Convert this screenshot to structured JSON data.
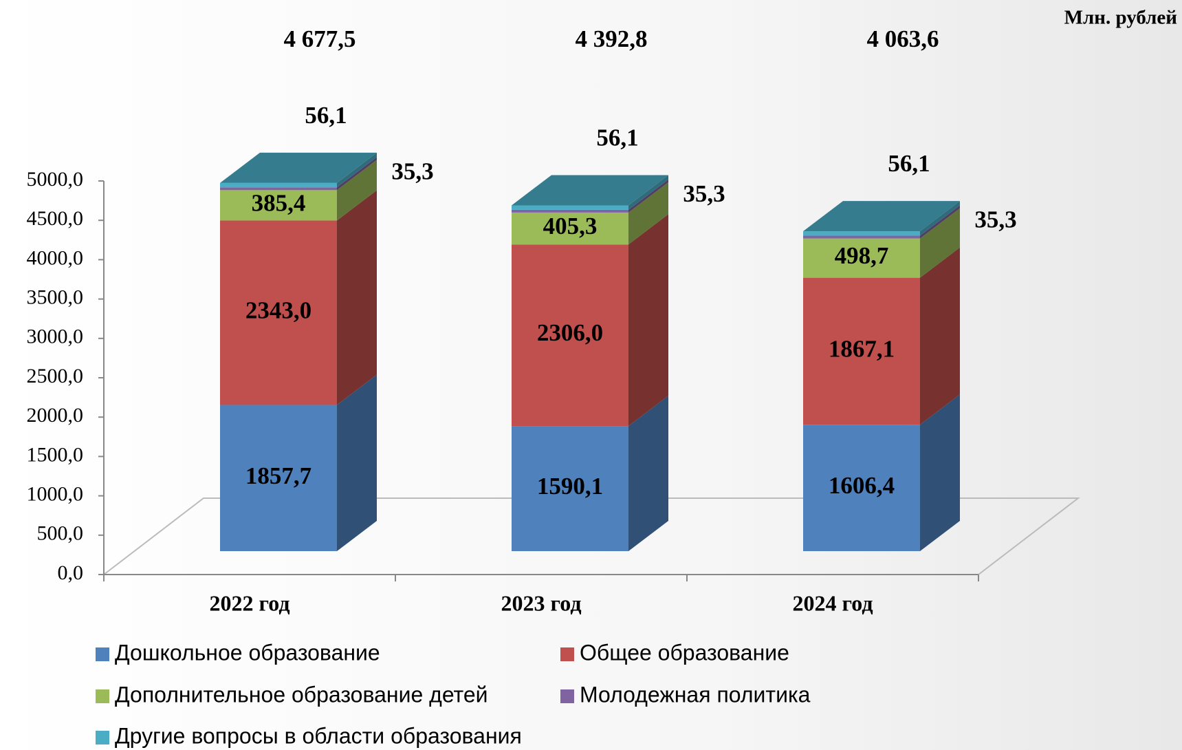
{
  "chart_data": {
    "type": "bar3d_stacked",
    "unit_label": "Млн. рублей",
    "categories": [
      "2022 год",
      "2023 год",
      "2024 год"
    ],
    "totals": [
      4677.5,
      4392.8,
      4063.6
    ],
    "total_labels": [
      "4 677,5",
      "4 392,8",
      "4 063,6"
    ],
    "series": [
      {
        "name": "Дошкольное образование",
        "color": "#4f81bd",
        "values": [
          1857.7,
          1590.1,
          1606.4
        ],
        "value_labels": [
          "1857,7",
          "1590,1",
          "1606,4"
        ]
      },
      {
        "name": "Общее образование",
        "color": "#c0504d",
        "values": [
          2343.0,
          2306.0,
          1867.1
        ],
        "value_labels": [
          "2343,0",
          "2306,0",
          "1867,1"
        ]
      },
      {
        "name": "Дополнительное образование детей",
        "color": "#9bbb59",
        "values": [
          385.4,
          405.3,
          498.7
        ],
        "value_labels": [
          "385,4",
          "405,3",
          "498,7"
        ]
      },
      {
        "name": "Молодежная политика",
        "color": "#8064a2",
        "values": [
          35.3,
          35.3,
          35.3
        ],
        "value_labels": [
          "35,3",
          "35,3",
          "35,3"
        ]
      },
      {
        "name": "Другие вопросы в области образования",
        "color": "#4bacc6",
        "values": [
          56.1,
          56.1,
          56.1
        ],
        "value_labels": [
          "56,1",
          "56,1",
          "56,1"
        ]
      }
    ],
    "ylim": [
      0,
      5000
    ],
    "yticks": [
      {
        "value": 0,
        "label": "0,0"
      },
      {
        "value": 500,
        "label": "500,0"
      },
      {
        "value": 1000,
        "label": "1000,0"
      },
      {
        "value": 1500,
        "label": "1500,0"
      },
      {
        "value": 2000,
        "label": "2000,0"
      },
      {
        "value": 2500,
        "label": "2500,0"
      },
      {
        "value": 3000,
        "label": "3000,0"
      },
      {
        "value": 3500,
        "label": "3500,0"
      },
      {
        "value": 4000,
        "label": "4000,0"
      },
      {
        "value": 4500,
        "label": "4500,0"
      },
      {
        "value": 5000,
        "label": "5000,0"
      }
    ]
  }
}
